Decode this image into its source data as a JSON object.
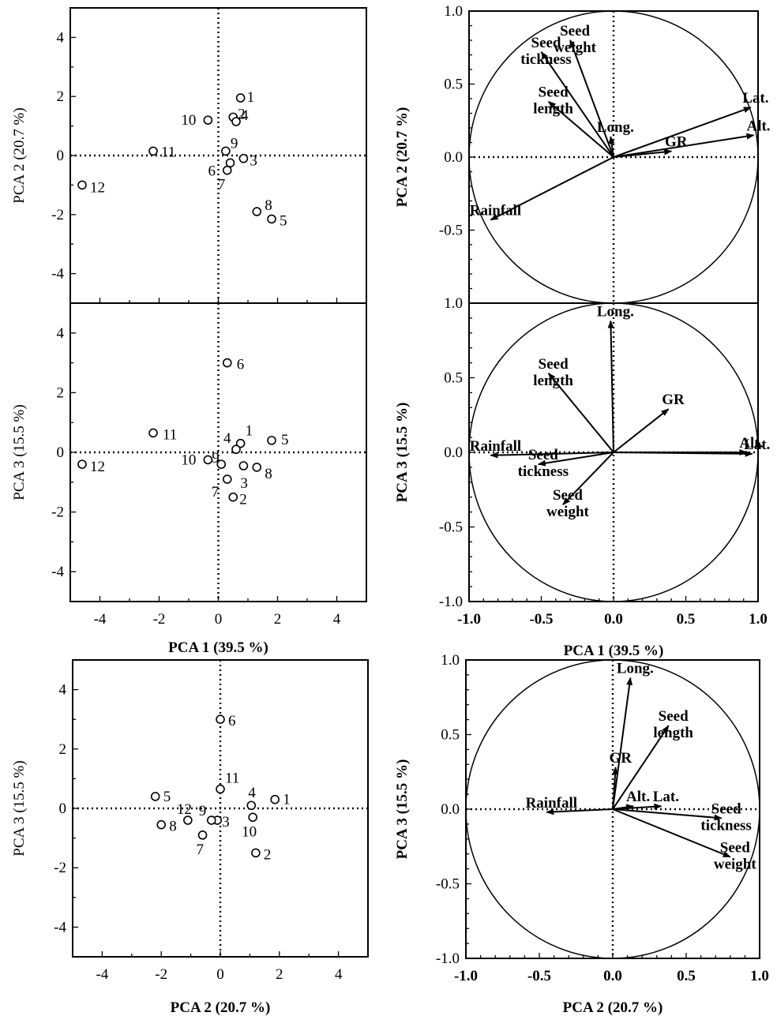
{
  "chart_data": [
    {
      "type": "scatter",
      "panel": "score-pc1-pc2",
      "xlabel": "",
      "ylabel": "PCA 2  (20.7 %)",
      "xlim": [
        -5,
        5
      ],
      "ylim": [
        -5,
        5
      ],
      "xticks": [
        -4,
        -2,
        0,
        2,
        4
      ],
      "yticks": [
        -4,
        -2,
        0,
        2,
        4
      ],
      "show_xticklabels": false,
      "points": [
        {
          "label": "1",
          "x": 0.75,
          "y": 1.95
        },
        {
          "label": "2",
          "x": 0.5,
          "y": 1.3
        },
        {
          "label": "3",
          "x": 0.85,
          "y": -0.1
        },
        {
          "label": "4",
          "x": 0.6,
          "y": 1.15
        },
        {
          "label": "5",
          "x": 1.8,
          "y": -2.15
        },
        {
          "label": "6",
          "x": 0.4,
          "y": -0.25
        },
        {
          "label": "7",
          "x": 0.3,
          "y": -0.5
        },
        {
          "label": "8",
          "x": 1.3,
          "y": -1.9
        },
        {
          "label": "9",
          "x": 0.25,
          "y": 0.15
        },
        {
          "label": "10",
          "x": -0.35,
          "y": 1.2
        },
        {
          "label": "11",
          "x": -2.2,
          "y": 0.15
        },
        {
          "label": "12",
          "x": -4.6,
          "y": -1.0
        }
      ]
    },
    {
      "type": "loading-circle",
      "panel": "loading-pc1-pc2",
      "xlabel": "",
      "ylabel": "PCA 2  (20.7 %)",
      "xlim": [
        -1.0,
        1.0
      ],
      "ylim": [
        -1.0,
        1.0
      ],
      "yticks": [
        -0.5,
        0.0,
        0.5,
        1.0
      ],
      "ytick_labels": [
        "-0.5",
        "0.0",
        "0.5",
        "1.0"
      ],
      "show_xticklabels": false,
      "vectors": [
        {
          "name": "Seed tickness",
          "lines": [
            "Seed",
            "tickness"
          ],
          "x": -0.5,
          "y": 0.72
        },
        {
          "name": "Seed weight",
          "lines": [
            "Seed",
            "weight"
          ],
          "x": -0.3,
          "y": 0.8
        },
        {
          "name": "Seed length",
          "lines": [
            "Seed",
            "length"
          ],
          "x": -0.45,
          "y": 0.38
        },
        {
          "name": "Long.",
          "lines": [
            "Long."
          ],
          "x": -0.02,
          "y": 0.14
        },
        {
          "name": "Lat.",
          "lines": [
            "Lat."
          ],
          "x": 0.95,
          "y": 0.34
        },
        {
          "name": "GR",
          "lines": [
            "GR"
          ],
          "x": 0.4,
          "y": 0.04
        },
        {
          "name": "Alt.",
          "lines": [
            "Alt."
          ],
          "x": 0.97,
          "y": 0.15
        },
        {
          "name": "Rainfall",
          "lines": [
            "Rainfall"
          ],
          "x": -0.85,
          "y": -0.43
        }
      ]
    },
    {
      "type": "scatter",
      "panel": "score-pc1-pc3",
      "xlabel": "PCA 1  (39.5 %)",
      "ylabel": "PCA 3  (15.5 %)",
      "xlim": [
        -5,
        5
      ],
      "ylim": [
        -5,
        5
      ],
      "xticks": [
        -4,
        -2,
        0,
        2,
        4
      ],
      "yticks": [
        -4,
        -2,
        0,
        2,
        4
      ],
      "show_xticklabels": true,
      "points": [
        {
          "label": "1",
          "x": 0.75,
          "y": 0.3
        },
        {
          "label": "2",
          "x": 0.5,
          "y": -1.5
        },
        {
          "label": "3",
          "x": 0.85,
          "y": -0.45
        },
        {
          "label": "4",
          "x": 0.6,
          "y": 0.1
        },
        {
          "label": "5",
          "x": 1.8,
          "y": 0.4
        },
        {
          "label": "6",
          "x": 0.3,
          "y": 3.0
        },
        {
          "label": "7",
          "x": 0.3,
          "y": -0.9
        },
        {
          "label": "8",
          "x": 1.3,
          "y": -0.5
        },
        {
          "label": "9",
          "x": 0.1,
          "y": -0.4
        },
        {
          "label": "10",
          "x": -0.35,
          "y": -0.25
        },
        {
          "label": "11",
          "x": -2.2,
          "y": 0.65
        },
        {
          "label": "12",
          "x": -4.6,
          "y": -0.4
        }
      ]
    },
    {
      "type": "loading-circle",
      "panel": "loading-pc1-pc3",
      "xlabel": "PCA 1  (39.5 %)",
      "ylabel": "PCA 3  (15.5 %)",
      "xlim": [
        -1.0,
        1.0
      ],
      "ylim": [
        -1.0,
        1.0
      ],
      "xticks": [
        -1.0,
        -0.5,
        0.0,
        0.5,
        1.0
      ],
      "xtick_labels": [
        "-1.0",
        "-0.5",
        "0.0",
        "0.5",
        "1.0"
      ],
      "yticks": [
        -1.0,
        -0.5,
        0.0,
        0.5,
        1.0
      ],
      "ytick_labels": [
        "-1.0",
        "-0.5",
        "0.0",
        "0.5",
        "1.0"
      ],
      "show_xticklabels": true,
      "vectors": [
        {
          "name": "Long.",
          "lines": [
            "Long."
          ],
          "x": -0.02,
          "y": 0.88
        },
        {
          "name": "Seed length",
          "lines": [
            "Seed",
            "length"
          ],
          "x": -0.45,
          "y": 0.53
        },
        {
          "name": "GR",
          "lines": [
            "GR"
          ],
          "x": 0.38,
          "y": 0.29
        },
        {
          "name": "Rainfall",
          "lines": [
            "Rainfall"
          ],
          "x": -0.85,
          "y": -0.02
        },
        {
          "name": "Alt.",
          "lines": [
            "Alt."
          ],
          "x": 0.92,
          "y": 0.0
        },
        {
          "name": "Lat.",
          "lines": [
            "Lat."
          ],
          "x": 0.96,
          "y": -0.01
        },
        {
          "name": "Seed tickness",
          "lines": [
            "Seed",
            "tickness"
          ],
          "x": -0.52,
          "y": -0.08
        },
        {
          "name": "Seed weight",
          "lines": [
            "Seed",
            "weight"
          ],
          "x": -0.35,
          "y": -0.35
        }
      ]
    },
    {
      "type": "scatter",
      "panel": "score-pc2-pc3",
      "xlabel": "PCA 2  (20.7 %)",
      "ylabel": "PCA 3  (15.5 %)",
      "xlim": [
        -5,
        5
      ],
      "ylim": [
        -5,
        5
      ],
      "xticks": [
        -4,
        -2,
        0,
        2,
        4
      ],
      "yticks": [
        -4,
        -2,
        0,
        2,
        4
      ],
      "show_xticklabels": true,
      "points": [
        {
          "label": "1",
          "x": 1.85,
          "y": 0.3
        },
        {
          "label": "2",
          "x": 1.2,
          "y": -1.5
        },
        {
          "label": "3",
          "x": -0.1,
          "y": -0.4
        },
        {
          "label": "4",
          "x": 1.05,
          "y": 0.1
        },
        {
          "label": "5",
          "x": -2.2,
          "y": 0.4
        },
        {
          "label": "6",
          "x": 0.0,
          "y": 3.0
        },
        {
          "label": "7",
          "x": -0.6,
          "y": -0.9
        },
        {
          "label": "8",
          "x": -2.0,
          "y": -0.55
        },
        {
          "label": "9",
          "x": -0.3,
          "y": -0.4
        },
        {
          "label": "10",
          "x": 1.1,
          "y": -0.3
        },
        {
          "label": "11",
          "x": 0.0,
          "y": 0.65
        },
        {
          "label": "12",
          "x": -1.1,
          "y": -0.4
        }
      ]
    },
    {
      "type": "loading-circle",
      "panel": "loading-pc2-pc3",
      "xlabel": "PCA 2  (20.7 %)",
      "ylabel": "PCA 3  (15.5 %)",
      "xlim": [
        -1.0,
        1.0
      ],
      "ylim": [
        -1.0,
        1.0
      ],
      "xticks": [
        -1.0,
        -0.5,
        0.0,
        0.5,
        1.0
      ],
      "xtick_labels": [
        "-1.0",
        "-0.5",
        "0.0",
        "0.5",
        "1.0"
      ],
      "yticks": [
        -1.0,
        -0.5,
        0.0,
        0.5,
        1.0
      ],
      "ytick_labels": [
        "-1.0",
        "-0.5",
        "0.0",
        "0.5",
        "1.0"
      ],
      "show_xticklabels": true,
      "vectors": [
        {
          "name": "Long.",
          "lines": [
            "Long."
          ],
          "x": 0.12,
          "y": 0.88
        },
        {
          "name": "Seed length",
          "lines": [
            "Seed",
            "length"
          ],
          "x": 0.38,
          "y": 0.56
        },
        {
          "name": "GR",
          "lines": [
            "GR"
          ],
          "x": 0.02,
          "y": 0.28
        },
        {
          "name": "Rainfall",
          "lines": [
            "Rainfall"
          ],
          "x": -0.45,
          "y": -0.02
        },
        {
          "name": "Alt.",
          "lines": [
            "Alt."
          ],
          "x": 0.14,
          "y": 0.02
        },
        {
          "name": "Lat.",
          "lines": [
            "Lat."
          ],
          "x": 0.33,
          "y": 0.02
        },
        {
          "name": "Seed tickness",
          "lines": [
            "Seed",
            "tickness"
          ],
          "x": 0.74,
          "y": -0.06
        },
        {
          "name": "Seed weight",
          "lines": [
            "Seed",
            "weight"
          ],
          "x": 0.8,
          "y": -0.32
        }
      ]
    }
  ]
}
